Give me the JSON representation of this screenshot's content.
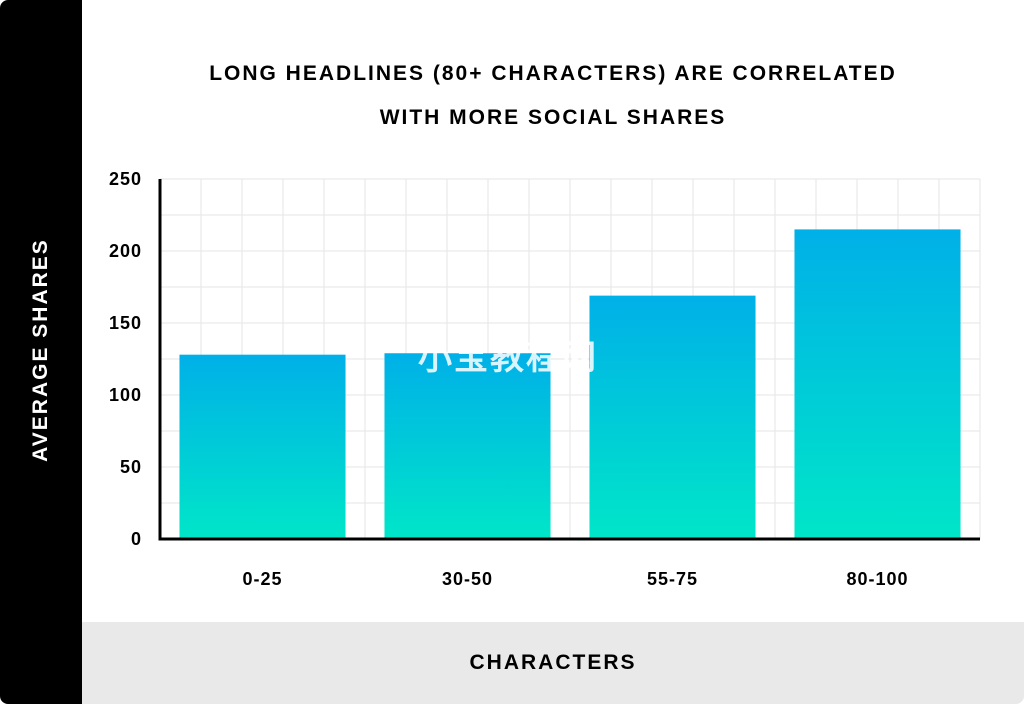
{
  "chart_data": {
    "type": "bar",
    "title_lines": [
      "LONG HEADLINES (80+ CHARACTERS) ARE CORRELATED",
      "WITH MORE SOCIAL SHARES"
    ],
    "xlabel": "CHARACTERS",
    "ylabel": "AVERAGE SHARES",
    "categories": [
      "0-25",
      "30-50",
      "55-75",
      "80-100"
    ],
    "values": [
      128,
      129,
      169,
      215
    ],
    "ylim": [
      0,
      250
    ],
    "yticks": [
      0,
      50,
      100,
      150,
      200,
      250
    ],
    "grid": true,
    "bar_gradient": [
      "#00b0e8",
      "#00e6c8"
    ]
  },
  "watermark": "小宝教程网"
}
